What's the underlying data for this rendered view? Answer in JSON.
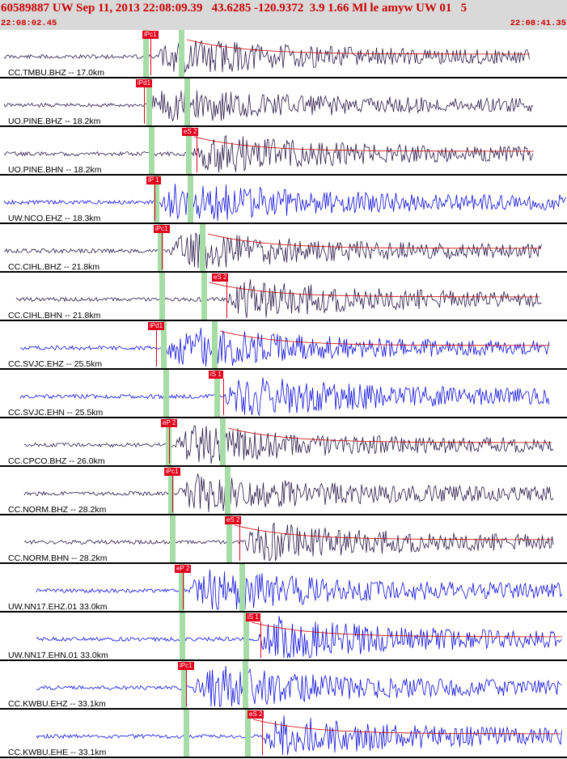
{
  "header": {
    "title": "60589887 UW Sep 11, 2013 22:08:09.39   43.6285 -120.9372  3.9 1.66 Ml le amyw UW 01   5",
    "time_start": "22:08:02.45",
    "time_end": "22:08:41.35"
  },
  "colors": {
    "header_bg": "#d9d9d9",
    "pick": "#e3001b",
    "trace_dark": "#2a1a4a",
    "trace_blue": "#1010e0",
    "window_green": "#a6dca6"
  },
  "traces": [
    {
      "label": "CC.TMBU.BHZ -- 17.0km",
      "pick": "iPc1",
      "color": "dark"
    },
    {
      "label": "UO.PINE.BHZ -- 18.2km",
      "pick": "iPd1",
      "color": "dark"
    },
    {
      "label": "UO.PINE.BHN -- 18.2km",
      "pick": "eS 2",
      "color": "dark"
    },
    {
      "label": "UW.NCO.EHZ -- 18.3km",
      "pick": "iP 1",
      "color": "blue"
    },
    {
      "label": "CC.CIHL.BHZ -- 21.8km",
      "pick": "iPc1",
      "color": "dark"
    },
    {
      "label": "CC.CIHL.BHN -- 21.8km",
      "pick": "eS 2",
      "color": "dark"
    },
    {
      "label": "CC.SVJC.EHZ -- 25.5km",
      "pick": "iPd1",
      "color": "blue"
    },
    {
      "label": "CC.SVJC.EHN -- 25.5km",
      "pick": "iS 1",
      "color": "blue"
    },
    {
      "label": "CC.CPCO.BHZ -- 26.0km",
      "pick": "eP 2",
      "color": "dark"
    },
    {
      "label": "CC.NORM.BHZ -- 28.2km",
      "pick": "iPc1",
      "color": "dark"
    },
    {
      "label": "CC.NORM.BHN -- 28.2km",
      "pick": "eS 2",
      "color": "dark"
    },
    {
      "label": "UW.NN17.EHZ.01 33.0km",
      "pick": "eP 2",
      "color": "blue"
    },
    {
      "label": "UW.NN17.EHN.01 33.0km",
      "pick": "iS 1",
      "color": "blue"
    },
    {
      "label": "CC.KWBU.EHZ -- 33.1km",
      "pick": "iPc1",
      "color": "blue"
    },
    {
      "label": "CC.KWBU.EHE -- 33.1km",
      "pick": "eS 2",
      "color": "blue"
    }
  ]
}
